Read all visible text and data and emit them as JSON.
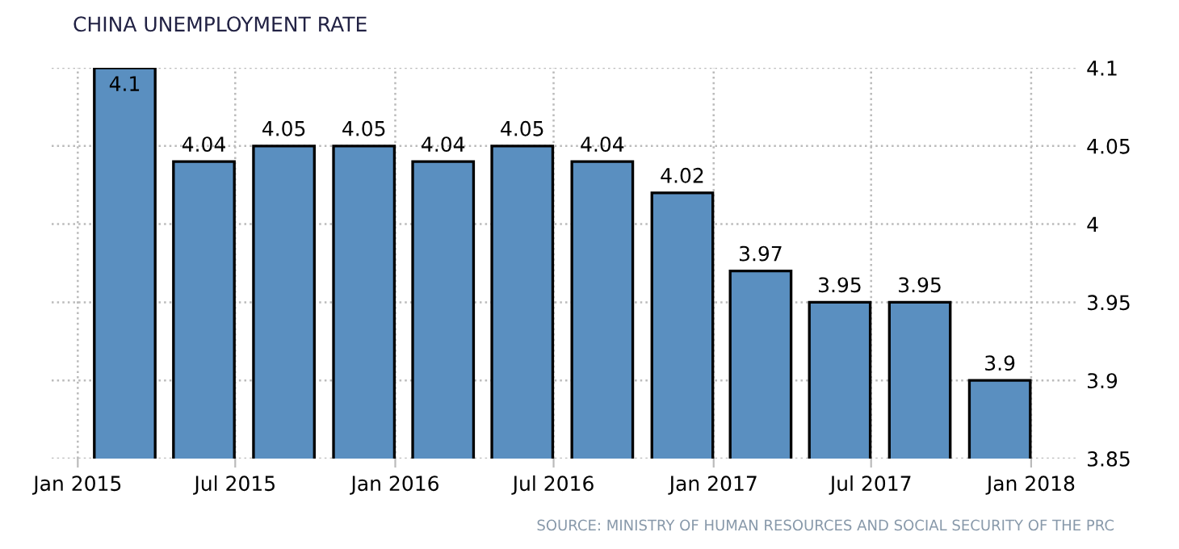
{
  "chart_data": {
    "type": "bar",
    "title": "CHINA UNEMPLOYMENT RATE",
    "x": [
      "2015-02-24",
      "2015-05-26",
      "2015-08-26",
      "2015-11-26",
      "2016-02-25",
      "2016-05-26",
      "2016-08-26",
      "2016-11-26",
      "2017-02-24",
      "2017-05-26",
      "2017-08-26",
      "2017-11-26"
    ],
    "values": [
      4.1,
      4.04,
      4.05,
      4.05,
      4.04,
      4.05,
      4.04,
      4.02,
      3.97,
      3.95,
      3.95,
      3.9
    ],
    "color": "#5a8fc0",
    "data_labels": true,
    "xlim": [
      "2014-12-02",
      "2018-02-23"
    ],
    "xticks": [
      {
        "value": "2015-01-01",
        "label": "Jan 2015"
      },
      {
        "value": "2015-07-01",
        "label": "Jul 2015"
      },
      {
        "value": "2016-01-01",
        "label": "Jan 2016"
      },
      {
        "value": "2016-07-01",
        "label": "Jul 2016"
      },
      {
        "value": "2017-01-01",
        "label": "Jan 2017"
      },
      {
        "value": "2017-07-01",
        "label": "Jul 2017"
      },
      {
        "value": "2018-01-01",
        "label": "Jan 2018"
      }
    ],
    "ylim": [
      3.85,
      4.1
    ],
    "yticks": [
      3.85,
      3.9,
      3.95,
      4,
      4.05,
      4.1
    ],
    "grid": true,
    "annotations": [
      "SOURCE: MINISTRY OF HUMAN RESOURCES AND SOCIAL SECURITY OF THE PRC"
    ]
  }
}
